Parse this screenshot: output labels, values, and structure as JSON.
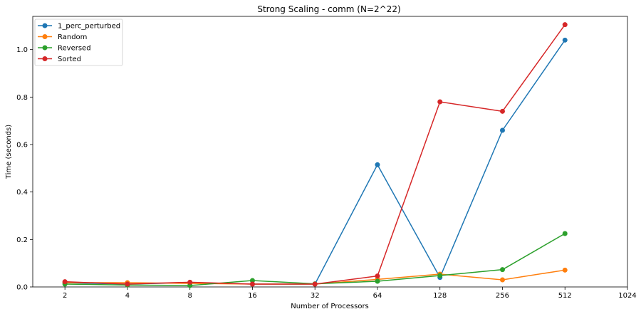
{
  "chart_data": {
    "type": "line",
    "title": "Strong Scaling - comm (N=2^22)",
    "xlabel": "Number of Processors",
    "ylabel": "Time (seconds)",
    "x_scale": "log2",
    "x": [
      2,
      4,
      8,
      16,
      32,
      64,
      128,
      256,
      512
    ],
    "x_ticks": [
      "2",
      "4",
      "8",
      "16",
      "32",
      "64",
      "128",
      "256",
      "512",
      "1024"
    ],
    "xlim": [
      1.4,
      1024
    ],
    "ylim": [
      0,
      1.14
    ],
    "y_ticks": [
      "0.0",
      "0.2",
      "0.4",
      "0.6",
      "0.8",
      "1.0"
    ],
    "grid": false,
    "legend_position": "top-left",
    "series": [
      {
        "name": "1_perc_perturbed",
        "color": "#1f77b4",
        "values": [
          0.018,
          0.012,
          0.018,
          0.012,
          0.012,
          0.515,
          0.04,
          0.66,
          1.04
        ]
      },
      {
        "name": "Random",
        "color": "#ff7f0e",
        "values": [
          0.018,
          0.018,
          0.015,
          0.012,
          0.012,
          0.032,
          0.054,
          0.03,
          0.071
        ]
      },
      {
        "name": "Reversed",
        "color": "#2ca02c",
        "values": [
          0.012,
          0.008,
          0.006,
          0.027,
          0.013,
          0.024,
          0.048,
          0.073,
          0.225
        ]
      },
      {
        "name": "Sorted",
        "color": "#d62728",
        "values": [
          0.022,
          0.012,
          0.02,
          0.012,
          0.012,
          0.046,
          0.78,
          0.74,
          1.105
        ]
      }
    ]
  }
}
